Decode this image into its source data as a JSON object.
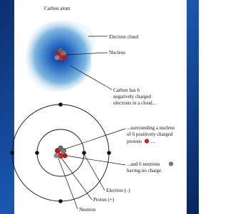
{
  "title": "Carbon atom",
  "cloud_labels": [
    "Electron cloud",
    "Nucleus"
  ],
  "cloud_caption": [
    "Carbon has 6",
    "negatively charged",
    "electrons in a cloud..."
  ],
  "proton_caption": {
    "lines": [
      "...surrounding a nucleus",
      "of 6 positively charged",
      "protons"
    ],
    "tail": "..."
  },
  "neutron_caption": {
    "lines": [
      "...and 6  neutrons",
      "having no charge."
    ]
  },
  "model_labels": [
    "Electron (–)",
    "Proton (+)",
    "Neutron"
  ]
}
